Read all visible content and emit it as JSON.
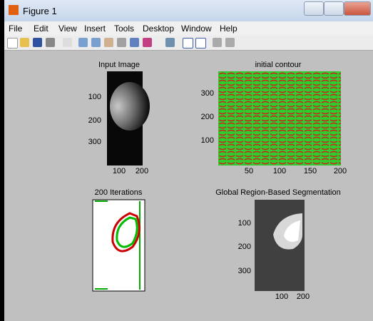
{
  "window": {
    "title": "Figure 1"
  },
  "menu": [
    "File",
    "Edit",
    "View",
    "Insert",
    "Tools",
    "Desktop",
    "Window",
    "Help"
  ],
  "plots": [
    {
      "title": "Input Image",
      "xticks": [
        100,
        200
      ],
      "yticks": [
        100,
        200,
        300
      ]
    },
    {
      "title": "initial contour",
      "xticks": [
        50,
        100,
        150,
        200
      ],
      "yticks": [
        300,
        200,
        100
      ]
    },
    {
      "title": "200 Iterations"
    },
    {
      "title": "Global Region-Based Segmentation",
      "xticks": [
        100,
        200
      ],
      "yticks": [
        100,
        200,
        300
      ]
    }
  ]
}
